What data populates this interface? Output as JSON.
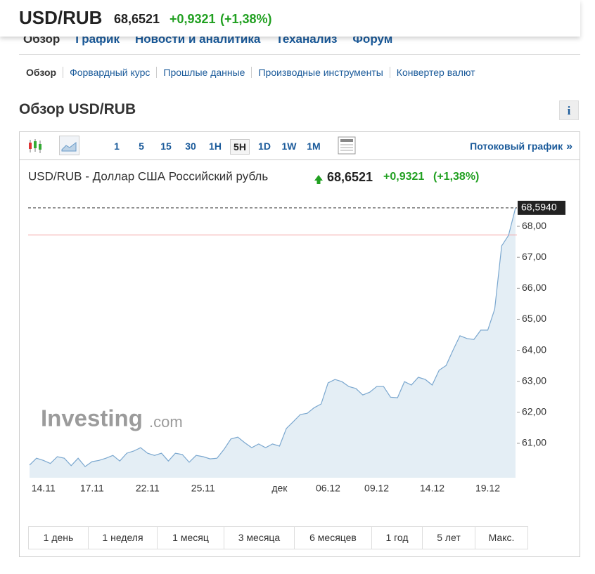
{
  "header": {
    "symbol": "USD/RUB",
    "price": "68,6521",
    "change": "+0,9321",
    "change_pct": "(+1,38%)"
  },
  "tabs": [
    "Обзор",
    "График",
    "Новости и аналитика",
    "Теханализ",
    "Форум"
  ],
  "subnav": [
    "Обзор",
    "Форвардный курс",
    "Прошлые данные",
    "Производные инструменты",
    "Конвертер валют"
  ],
  "section_title": "Обзор USD/RUB",
  "info_icon": "i",
  "toolbar": {
    "intervals": [
      "1",
      "5",
      "15",
      "30",
      "1H",
      "5H",
      "1D",
      "1W",
      "1M"
    ],
    "stream_link": "Потоковый график",
    "stream_arrow": "»"
  },
  "chart_data": {
    "type": "area",
    "title": "USD/RUB - Доллар США Российский рубль",
    "price": "68,6521",
    "change": "+0,9321",
    "change_pct": "(+1,38%)",
    "watermark": "Investing",
    "watermark_suffix": ".com",
    "color": "#7aa7cf",
    "fill": "#e4eef5",
    "reference_value": 67.72,
    "reference_color": "#f2a0a0",
    "categories": [
      null,
      null,
      "14.11",
      null,
      null,
      null,
      null,
      null,
      null,
      "17.11",
      null,
      null,
      null,
      null,
      null,
      null,
      null,
      "22.11",
      null,
      null,
      null,
      null,
      null,
      null,
      null,
      "25.11",
      null,
      null,
      null,
      null,
      null,
      null,
      null,
      null,
      null,
      null,
      "дек",
      null,
      null,
      null,
      null,
      null,
      null,
      "06.12",
      null,
      null,
      null,
      null,
      null,
      null,
      "09.12",
      null,
      null,
      null,
      null,
      null,
      null,
      null,
      "14.12",
      null,
      null,
      null,
      null,
      null,
      null,
      null,
      "19.12",
      null,
      null,
      null,
      null
    ],
    "values": [
      60.3,
      60.52,
      60.45,
      60.35,
      60.57,
      60.52,
      60.28,
      60.52,
      60.25,
      60.41,
      60.45,
      60.52,
      60.61,
      60.43,
      60.68,
      60.75,
      60.86,
      60.68,
      60.61,
      60.68,
      60.43,
      60.68,
      60.64,
      60.39,
      60.61,
      60.57,
      60.5,
      60.52,
      60.8,
      61.14,
      61.2,
      61.02,
      60.86,
      60.98,
      60.86,
      60.98,
      60.91,
      61.48,
      61.7,
      61.93,
      61.97,
      62.15,
      62.27,
      62.95,
      63.06,
      62.99,
      62.83,
      62.77,
      62.56,
      62.65,
      62.83,
      62.83,
      62.49,
      62.47,
      62.99,
      62.88,
      63.13,
      63.06,
      62.88,
      63.36,
      63.51,
      64.01,
      64.47,
      64.38,
      64.35,
      64.65,
      64.65,
      65.33,
      67.37,
      67.71,
      68.594
    ],
    "value_labels": [
      null,
      null,
      null,
      null,
      null,
      null,
      null,
      null,
      null,
      null,
      null,
      null,
      null,
      null,
      null,
      null,
      null,
      null,
      null,
      null,
      null,
      null,
      null,
      null,
      null,
      null,
      null,
      null,
      null,
      null,
      null,
      null,
      null,
      null,
      null,
      null,
      null,
      null,
      null,
      null,
      null,
      null,
      null,
      null,
      null,
      null,
      null,
      null,
      null,
      null,
      null,
      null,
      null,
      null,
      null,
      null,
      null,
      null,
      null,
      null,
      null,
      null,
      null,
      null,
      null,
      null,
      null,
      null,
      null,
      null,
      "68,5940"
    ],
    "ylim": [
      59.89,
      68.84
    ],
    "yticks": [
      {
        "value": 61,
        "label": "61,00"
      },
      {
        "value": 62,
        "label": "62,00"
      },
      {
        "value": 63,
        "label": "63,00"
      },
      {
        "value": 64,
        "label": "64,00"
      },
      {
        "value": 65,
        "label": "65,00"
      },
      {
        "value": 66,
        "label": "66,00"
      },
      {
        "value": 67,
        "label": "67,00"
      },
      {
        "value": 68,
        "label": "68,00"
      }
    ]
  },
  "ranges": [
    "1 день",
    "1 неделя",
    "1 месяц",
    "3 месяца",
    "6 месяцев",
    "1 год",
    "5 лет",
    "Макс."
  ]
}
